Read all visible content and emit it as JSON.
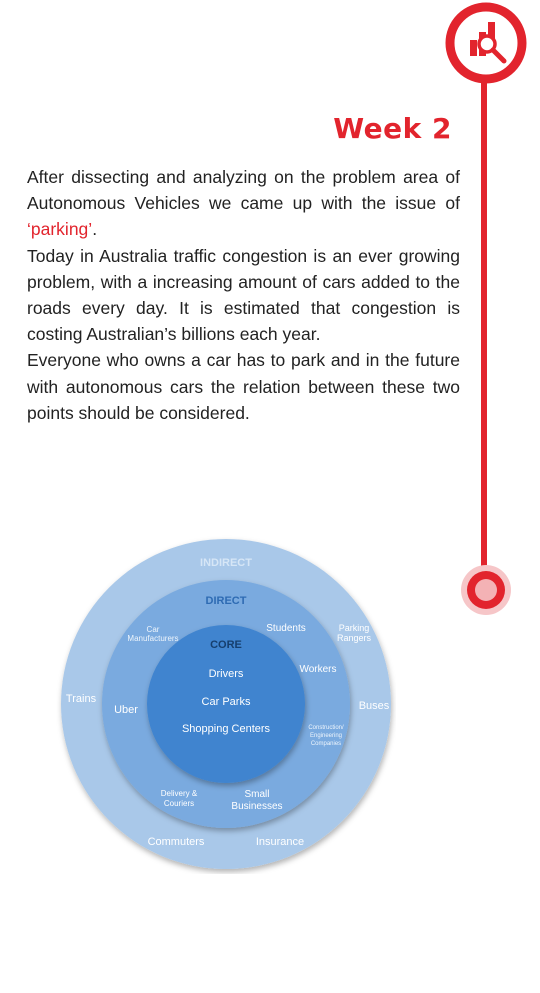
{
  "header": {
    "title": "Week 2"
  },
  "icons": {
    "top": "analytics-magnifier-icon",
    "bottom": "timeline-dot-icon"
  },
  "colors": {
    "accent": "#e2242d",
    "indirect": "#a9c8e9",
    "direct": "#7aaadf",
    "core": "#3f84cf"
  },
  "paragraphs": {
    "p1_before": "After dissecting and analyzing on the problem area of Autonomous Vehicles we came up with the issue of ",
    "p1_highlight": "‘parking’",
    "p1_after": ".",
    "p2": "Today in Australia traffic congestion is an ever growing problem, with a increasing amount of cars added to the roads every day. It is estimated that congestion is costing Australian’s billions each year.",
    "p3": "Everyone who owns a car has to park and in the future with autonomous cars the relation between these two points should be considered."
  },
  "diagram": {
    "rings": {
      "indirect": "INDIRECT",
      "direct": "DIRECT",
      "core": "CORE"
    },
    "core": [
      "Drivers",
      "Car Parks",
      "Shopping Centers"
    ],
    "direct": {
      "car_manufacturers_1": "Car",
      "car_manufacturers_2": "Manufacturers",
      "students": "Students",
      "workers": "Workers",
      "uber": "Uber",
      "construction_1": "Construction/",
      "construction_2": "Engineering",
      "construction_3": "Companies",
      "delivery_1": "Delivery &",
      "delivery_2": "Couriers",
      "small_1": "Small",
      "small_2": "Businesses"
    },
    "indirect": {
      "parking_1": "Parking",
      "parking_2": "Rangers",
      "trains": "Trains",
      "buses": "Buses",
      "commuters": "Commuters",
      "insurance": "Insurance"
    }
  }
}
